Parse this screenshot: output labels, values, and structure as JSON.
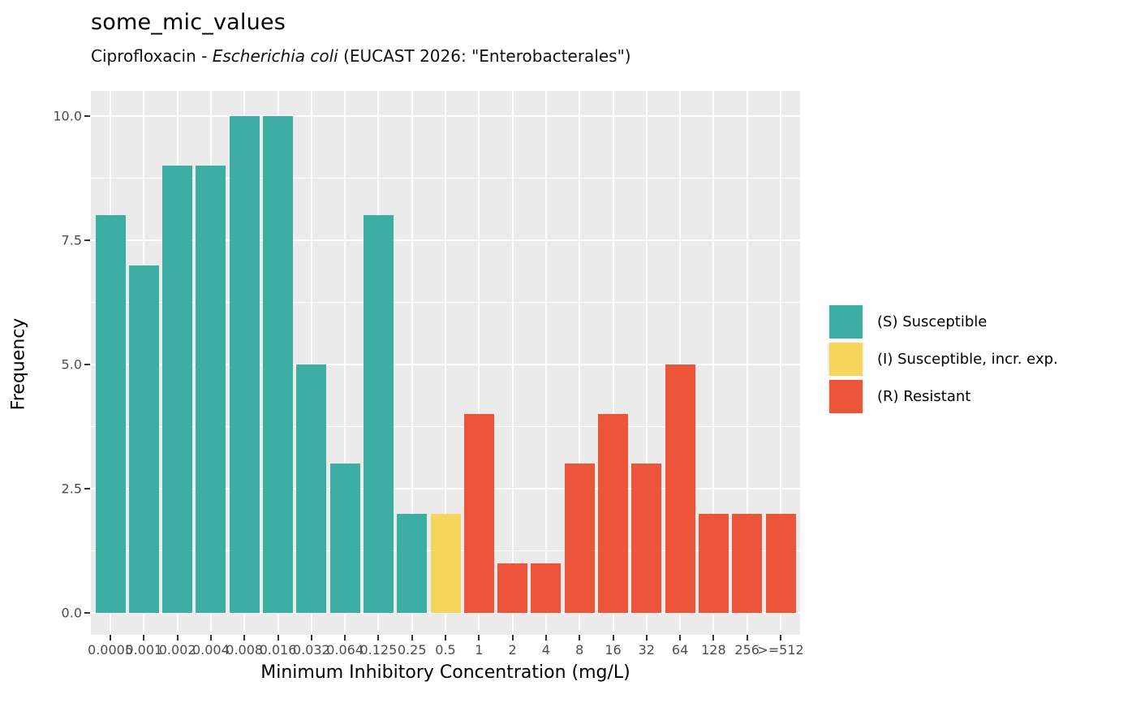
{
  "title": "some_mic_values",
  "subtitle": {
    "prefix": "Ciprofloxacin - ",
    "italic": "Escherichia coli",
    "suffix": " (EUCAST 2026: \"Enterobacterales\")"
  },
  "chart_data": {
    "type": "bar",
    "title": "some_mic_values",
    "subtitle_plain": "Ciprofloxacin - Escherichia coli (EUCAST 2026: \"Enterobacterales\")",
    "xlabel": "Minimum Inhibitory Concentration (mg/L)",
    "ylabel": "Frequency",
    "categories": [
      "0.0005",
      "0.001",
      "0.002",
      "0.004",
      "0.008",
      "0.016",
      "0.032",
      "0.064",
      "0.125",
      "0.25",
      "0.5",
      "1",
      "2",
      "4",
      "8",
      "16",
      "32",
      "64",
      "128",
      "256",
      ">=512"
    ],
    "values": [
      8,
      7,
      9,
      9,
      10,
      10,
      5,
      3,
      8,
      2,
      2,
      4,
      1,
      1,
      3,
      4,
      3,
      5,
      2,
      2,
      2
    ],
    "sir_class": [
      "S",
      "S",
      "S",
      "S",
      "S",
      "S",
      "S",
      "S",
      "S",
      "S",
      "I",
      "R",
      "R",
      "R",
      "R",
      "R",
      "R",
      "R",
      "R",
      "R",
      "R"
    ],
    "y_ticks": [
      0.0,
      2.5,
      5.0,
      7.5,
      10.0
    ],
    "y_tick_labels": [
      "0.0",
      "2.5",
      "5.0",
      "7.5",
      "10.0"
    ],
    "ylim": [
      0,
      10
    ],
    "grid": true,
    "legend_position": "right",
    "legend": [
      {
        "label": "(S) Susceptible",
        "color": "#3CAEA3"
      },
      {
        "label": "(I) Susceptible, incr. exp.",
        "color": "#F6D55C"
      },
      {
        "label": "(R) Resistant",
        "color": "#ED553B"
      }
    ],
    "colors": {
      "S": "#3CAEA3",
      "I": "#F6D55C",
      "R": "#ED553B"
    },
    "panel_bg": "#EBEBEB"
  }
}
